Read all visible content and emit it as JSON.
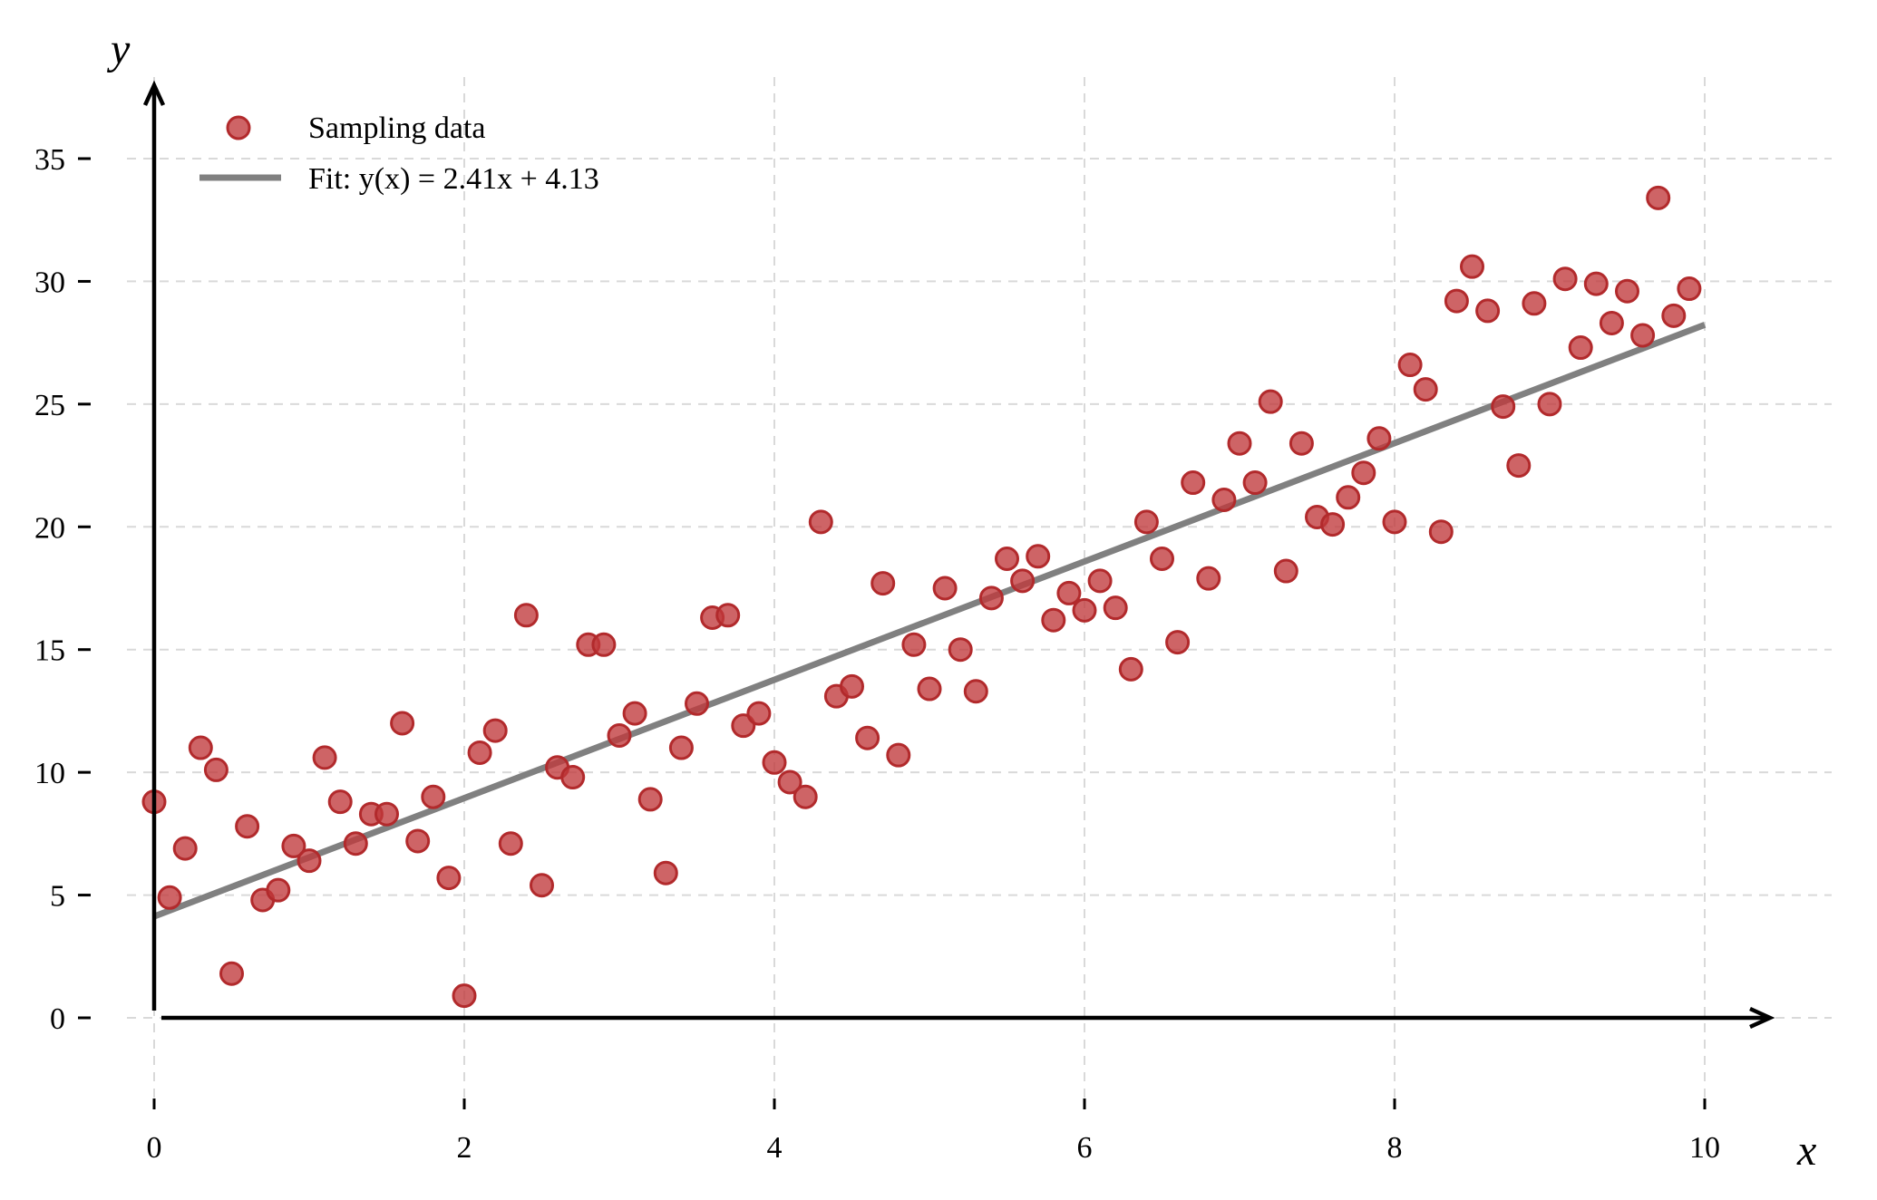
{
  "chart_data": {
    "type": "scatter",
    "xlabel": "x",
    "ylabel": "y",
    "xlim": [
      0,
      10
    ],
    "ylim": [
      -3,
      38
    ],
    "x_ticks": [
      0,
      2,
      4,
      6,
      8,
      10
    ],
    "y_ticks": [
      0,
      5,
      10,
      15,
      20,
      25,
      30,
      35
    ],
    "grid": true,
    "legend_position": "top-left",
    "colors": {
      "points": "#c0393b",
      "points_edge": "#b22a2c",
      "fit_line": "#808080",
      "axis": "#000000"
    },
    "series": [
      {
        "name": "Sampling data",
        "kind": "scatter",
        "points": [
          [
            0.0,
            8.8
          ],
          [
            0.1,
            4.9
          ],
          [
            0.2,
            6.9
          ],
          [
            0.3,
            11.0
          ],
          [
            0.4,
            10.1
          ],
          [
            0.5,
            1.8
          ],
          [
            0.6,
            7.8
          ],
          [
            0.7,
            4.8
          ],
          [
            0.8,
            5.2
          ],
          [
            0.9,
            7.0
          ],
          [
            1.0,
            6.4
          ],
          [
            1.1,
            10.6
          ],
          [
            1.2,
            8.8
          ],
          [
            1.3,
            7.1
          ],
          [
            1.4,
            8.3
          ],
          [
            1.5,
            8.3
          ],
          [
            1.6,
            12.0
          ],
          [
            1.7,
            7.2
          ],
          [
            1.8,
            9.0
          ],
          [
            1.9,
            5.7
          ],
          [
            2.0,
            0.9
          ],
          [
            2.1,
            10.8
          ],
          [
            2.2,
            11.7
          ],
          [
            2.3,
            7.1
          ],
          [
            2.4,
            16.4
          ],
          [
            2.5,
            5.4
          ],
          [
            2.6,
            10.2
          ],
          [
            2.7,
            9.8
          ],
          [
            2.8,
            15.2
          ],
          [
            2.9,
            15.2
          ],
          [
            3.0,
            11.5
          ],
          [
            3.1,
            12.4
          ],
          [
            3.2,
            8.9
          ],
          [
            3.3,
            5.9
          ],
          [
            3.4,
            11.0
          ],
          [
            3.5,
            12.8
          ],
          [
            3.6,
            16.3
          ],
          [
            3.7,
            16.4
          ],
          [
            3.8,
            11.9
          ],
          [
            3.9,
            12.4
          ],
          [
            4.0,
            10.4
          ],
          [
            4.1,
            9.6
          ],
          [
            4.2,
            9.0
          ],
          [
            4.3,
            20.2
          ],
          [
            4.4,
            13.1
          ],
          [
            4.5,
            13.5
          ],
          [
            4.6,
            11.4
          ],
          [
            4.7,
            17.7
          ],
          [
            4.8,
            10.7
          ],
          [
            4.9,
            15.2
          ],
          [
            5.0,
            13.4
          ],
          [
            5.1,
            17.5
          ],
          [
            5.2,
            15.0
          ],
          [
            5.3,
            13.3
          ],
          [
            5.4,
            17.1
          ],
          [
            5.5,
            18.7
          ],
          [
            5.6,
            17.8
          ],
          [
            5.7,
            18.8
          ],
          [
            5.8,
            16.2
          ],
          [
            5.9,
            17.3
          ],
          [
            6.0,
            16.6
          ],
          [
            6.1,
            17.8
          ],
          [
            6.2,
            16.7
          ],
          [
            6.3,
            14.2
          ],
          [
            6.4,
            20.2
          ],
          [
            6.5,
            18.7
          ],
          [
            6.6,
            15.3
          ],
          [
            6.7,
            21.8
          ],
          [
            6.8,
            17.9
          ],
          [
            6.9,
            21.1
          ],
          [
            7.0,
            23.4
          ],
          [
            7.1,
            21.8
          ],
          [
            7.2,
            25.1
          ],
          [
            7.3,
            18.2
          ],
          [
            7.4,
            23.4
          ],
          [
            7.5,
            20.4
          ],
          [
            7.6,
            20.1
          ],
          [
            7.7,
            21.2
          ],
          [
            7.8,
            22.2
          ],
          [
            7.9,
            23.6
          ],
          [
            8.0,
            20.2
          ],
          [
            8.1,
            26.6
          ],
          [
            8.2,
            25.6
          ],
          [
            8.3,
            19.8
          ],
          [
            8.4,
            29.2
          ],
          [
            8.5,
            30.6
          ],
          [
            8.6,
            28.8
          ],
          [
            8.7,
            24.9
          ],
          [
            8.8,
            22.5
          ],
          [
            8.9,
            29.1
          ],
          [
            9.0,
            25.0
          ],
          [
            9.1,
            30.1
          ],
          [
            9.2,
            27.3
          ],
          [
            9.3,
            29.9
          ],
          [
            9.4,
            28.3
          ],
          [
            9.5,
            29.6
          ],
          [
            9.6,
            27.8
          ],
          [
            9.7,
            33.4
          ],
          [
            9.8,
            28.6
          ],
          [
            9.9,
            29.7
          ]
        ]
      },
      {
        "name": "Fit: y(x) = 2.41x + 4.13",
        "kind": "line",
        "slope": 2.41,
        "intercept": 4.13,
        "x": [
          0,
          10
        ],
        "y": [
          4.13,
          28.23
        ]
      }
    ]
  }
}
